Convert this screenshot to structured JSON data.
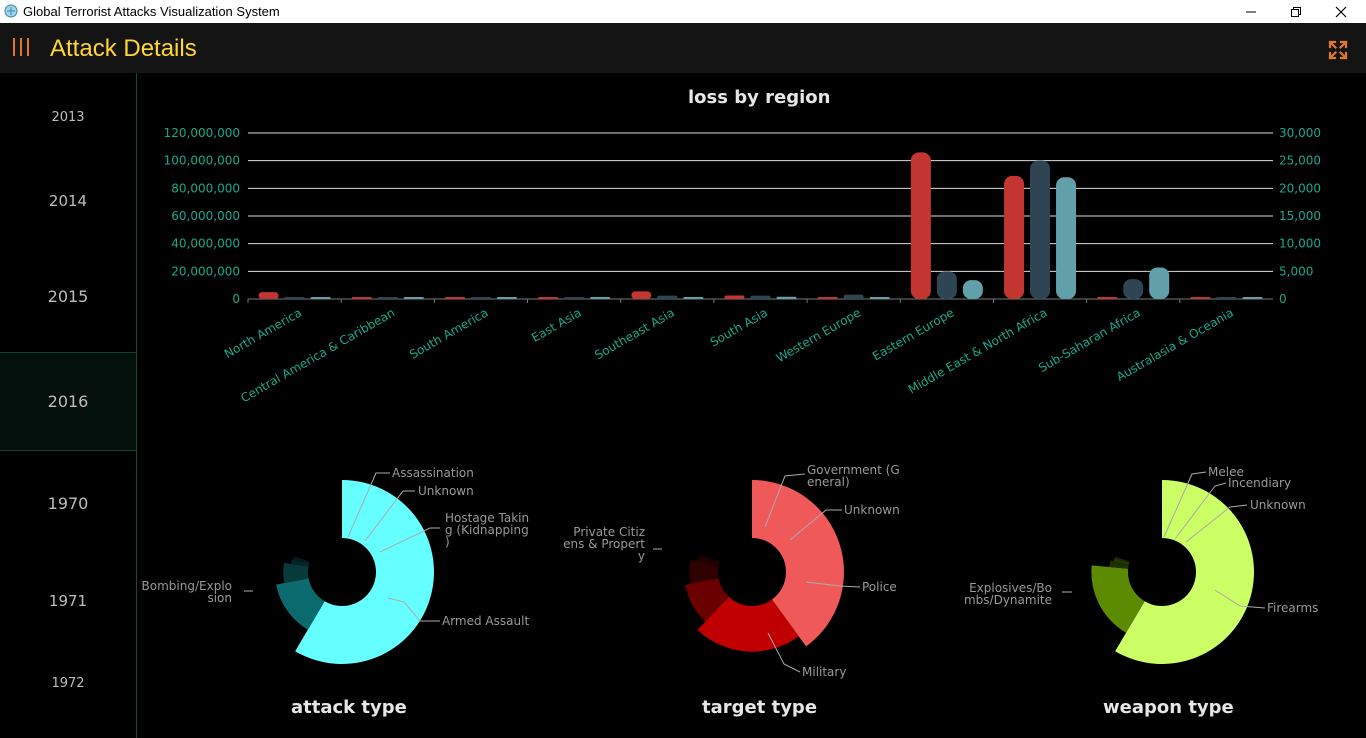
{
  "window": {
    "title": "Global Terrorist Attacks Visualization System",
    "minimize_icon": "minimize-icon",
    "restore_icon": "restore-icon",
    "close_icon": "close-icon"
  },
  "header": {
    "title": "Attack Details",
    "menu_icon": "menu-bars-icon",
    "fullscreen_icon": "fullscreen-expand-icon",
    "accent_color": "#e2762a",
    "title_color": "#ffd633"
  },
  "sidebar": {
    "years": [
      "2013",
      "2014",
      "2015",
      "2016",
      "1970",
      "1971",
      "1972"
    ],
    "selected": "2016"
  },
  "chart_data": [
    {
      "type": "bar",
      "title": "loss by region",
      "categories": [
        "North America",
        "Central America & Caribbean",
        "South America",
        "East Asia",
        "Southeast Asia",
        "South Asia",
        "Western Europe",
        "Eastern Europe",
        "Middle East & North Africa",
        "Sub-Saharan Africa",
        "Australasia & Oceania"
      ],
      "left_axis": {
        "ticks": [
          "0",
          "20,000,000",
          "40,000,000",
          "60,000,000",
          "80,000,000",
          "100,000,000",
          "120,000,000"
        ],
        "ylim": [
          0,
          120000000
        ]
      },
      "right_axis": {
        "ticks": [
          "0",
          "5,000",
          "10,000",
          "15,000",
          "20,000",
          "25,000",
          "30,000"
        ],
        "ylim": [
          0,
          30000
        ]
      },
      "series": [
        {
          "color": "#c23531",
          "axis": "left",
          "values": [
            5000000,
            0,
            0,
            0,
            5500000,
            2500000,
            0,
            106000000,
            89000000,
            0,
            0
          ]
        },
        {
          "color": "#2f4554",
          "axis": "right",
          "values": [
            0,
            0,
            0,
            0,
            600,
            600,
            800,
            5000,
            25000,
            3600,
            0
          ]
        },
        {
          "color": "#61a0a8",
          "axis": "right",
          "values": [
            0,
            0,
            0,
            0,
            300,
            400,
            100,
            3400,
            22000,
            5700,
            0
          ]
        }
      ],
      "grid": true,
      "tick_color": "#1aa88a"
    },
    {
      "type": "pie",
      "title": "attack type",
      "slices": [
        {
          "label": "Bombing/Explosion",
          "value": 58.5,
          "color": "#66ffff"
        },
        {
          "label": "Armed Assault",
          "value": 13.5,
          "color": "#0b6a6e"
        },
        {
          "label": "Hostage Taking (Kidnapping)",
          "value": 5.5,
          "color": "#083a3c"
        },
        {
          "label": "Unknown",
          "value": 1.5,
          "color": "#052528"
        },
        {
          "label": "Assassination",
          "value": 1.0,
          "color": "#041a1c"
        }
      ]
    },
    {
      "type": "pie",
      "title": "target type",
      "slices": [
        {
          "label": "Private Citizens & Property",
          "value": 40,
          "color": "#f05959"
        },
        {
          "label": "Military",
          "value": 22,
          "color": "#c00000"
        },
        {
          "label": "Police",
          "value": 10,
          "color": "#6a0000"
        },
        {
          "label": "Unknown",
          "value": 6,
          "color": "#300000"
        },
        {
          "label": "Government (General)",
          "value": 2,
          "color": "#200000"
        }
      ]
    },
    {
      "type": "pie",
      "title": "weapon type",
      "slices": [
        {
          "label": "Explosives/Bombs/Dynamite",
          "value": 58.5,
          "color": "#ccff66"
        },
        {
          "label": "Firearms",
          "value": 18,
          "color": "#5c8a00"
        },
        {
          "label": "Unknown",
          "value": 2.0,
          "color": "#1e3000"
        },
        {
          "label": "Incendiary",
          "value": 0.8,
          "color": "#263c00"
        },
        {
          "label": "Melee",
          "value": 0.7,
          "color": "#1a2800"
        }
      ]
    }
  ],
  "pie_labels": {
    "attack": {
      "bombing": [
        "Bombing/Explo",
        "sion"
      ],
      "armed": "Armed Assault",
      "hostage": [
        "Hostage Takin",
        "g (Kidnapping",
        ")"
      ],
      "unknown": "Unknown",
      "assassination": "Assassination"
    },
    "target": {
      "private": [
        "Private Citiz",
        "ens & Propert",
        "y"
      ],
      "military": "Military",
      "police": "Police",
      "unknown": "Unknown",
      "government": [
        "Government (G",
        "eneral)"
      ]
    },
    "weapon": {
      "explosives": [
        "Explosives/Bo",
        "mbs/Dynamite"
      ],
      "firearms": "Firearms",
      "unknown": "Unknown",
      "incendiary": "Incendiary",
      "melee": "Melee"
    }
  }
}
